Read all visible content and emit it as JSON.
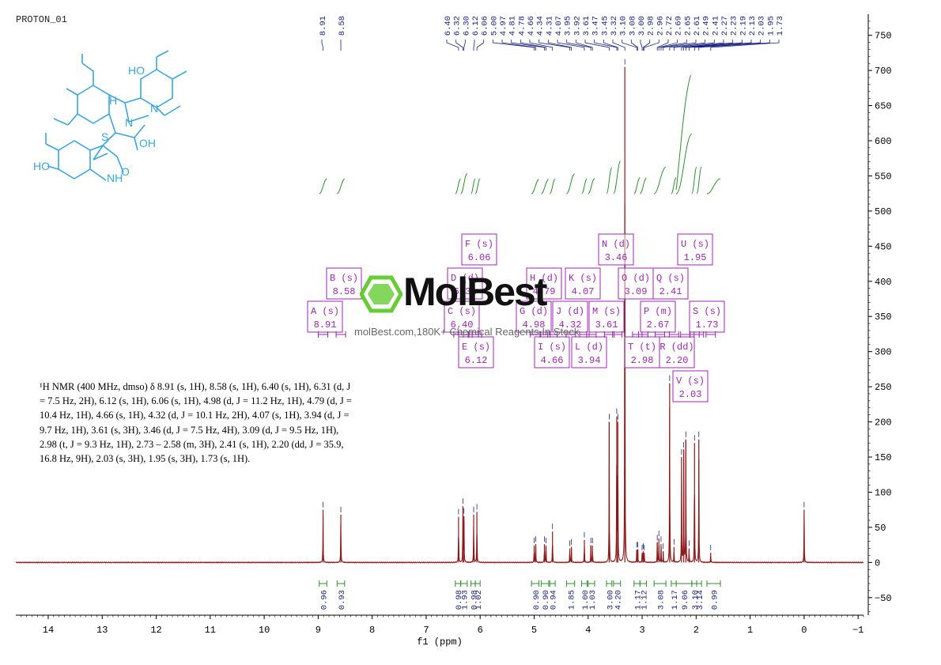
{
  "title": "PROTON_01",
  "nmr_text": "¹H NMR (400 MHz, dmso) δ 8.91 (s, 1H), 8.58 (s, 1H), 6.40 (s, 1H), 6.31 (d, J = 7.5 Hz, 2H), 6.12 (s, 1H), 6.06 (s, 1H), 4.98 (d, J = 11.2 Hz, 1H), 4.79 (d, J = 10.4 Hz, 1H), 4.66 (s, 1H), 4.32 (d, J = 10.1 Hz, 2H), 4.07 (s, 1H), 3.94 (d, J = 9.7 Hz, 1H), 3.61 (s, 3H), 3.46 (d, J = 7.5 Hz, 4H), 3.09 (d, J = 9.5 Hz, 1H), 2.98 (t, J = 9.3 Hz, 1H), 2.73 – 2.58 (m, 3H), 2.41 (s, 1H), 2.20 (dd, J = 35.9, 16.8 Hz, 9H), 2.03 (s, 3H), 1.95 (s, 3H), 1.73 (s, 1H).",
  "watermark": {
    "brand": "MolBest",
    "tagline": "molBest.com,180K+ Chemical Reagents In Stock"
  },
  "molecule": {
    "labels": [
      "HO",
      "N",
      "N",
      "S",
      "OH",
      "HO",
      "NH",
      "O",
      "H"
    ]
  },
  "colors": {
    "spectrum": "#8b1a1a",
    "integral": "#2f8f2f",
    "peak_label": "#1a237e",
    "multiplet_box": "#9c27b0",
    "molecule": "#3aa6dd"
  },
  "chart_data": {
    "type": "line",
    "xlabel": "f1 (ppm)",
    "xlim": [
      14.6,
      -1.1
    ],
    "ylim": [
      -75,
      780
    ],
    "x_ticks": [
      "14",
      "13",
      "12",
      "11",
      "10",
      "9",
      "8",
      "7",
      "6",
      "5",
      "4",
      "3",
      "2",
      "1",
      "0",
      "-1"
    ],
    "y_ticks": [
      "-50",
      "0",
      "50",
      "100",
      "150",
      "200",
      "250",
      "300",
      "350",
      "400",
      "450",
      "500",
      "550",
      "600",
      "650",
      "700",
      "750"
    ],
    "peaks": [
      {
        "ppm": 8.91,
        "height": 75
      },
      {
        "ppm": 8.58,
        "height": 68
      },
      {
        "ppm": 6.4,
        "height": 65
      },
      {
        "ppm": 6.32,
        "height": 80
      },
      {
        "ppm": 6.3,
        "height": 66
      },
      {
        "ppm": 6.12,
        "height": 68
      },
      {
        "ppm": 6.06,
        "height": 72
      },
      {
        "ppm": 5.0,
        "height": 24
      },
      {
        "ppm": 4.97,
        "height": 26
      },
      {
        "ppm": 4.81,
        "height": 26
      },
      {
        "ppm": 4.78,
        "height": 24
      },
      {
        "ppm": 4.66,
        "height": 44
      },
      {
        "ppm": 4.34,
        "height": 20
      },
      {
        "ppm": 4.31,
        "height": 22
      },
      {
        "ppm": 4.07,
        "height": 32
      },
      {
        "ppm": 3.95,
        "height": 24
      },
      {
        "ppm": 3.92,
        "height": 24
      },
      {
        "ppm": 3.61,
        "height": 200
      },
      {
        "ppm": 3.47,
        "height": 208
      },
      {
        "ppm": 3.45,
        "height": 200
      },
      {
        "ppm": 3.32,
        "height": 705
      },
      {
        "ppm": 3.1,
        "height": 18
      },
      {
        "ppm": 3.08,
        "height": 18
      },
      {
        "ppm": 3.0,
        "height": 14
      },
      {
        "ppm": 2.98,
        "height": 16
      },
      {
        "ppm": 2.96,
        "height": 14
      },
      {
        "ppm": 2.72,
        "height": 28
      },
      {
        "ppm": 2.69,
        "height": 34
      },
      {
        "ppm": 2.65,
        "height": 26
      },
      {
        "ppm": 2.61,
        "height": 16
      },
      {
        "ppm": 2.49,
        "height": 255
      },
      {
        "ppm": 2.41,
        "height": 22
      },
      {
        "ppm": 2.27,
        "height": 150
      },
      {
        "ppm": 2.23,
        "height": 160
      },
      {
        "ppm": 2.19,
        "height": 175
      },
      {
        "ppm": 2.13,
        "height": 20
      },
      {
        "ppm": 2.03,
        "height": 170
      },
      {
        "ppm": 1.95,
        "height": 175
      },
      {
        "ppm": 1.73,
        "height": 14
      },
      {
        "ppm": 0.0,
        "height": 75
      }
    ],
    "top_labels": [
      "8.91",
      "8.58",
      "6.40",
      "6.32",
      "6.30",
      "6.12",
      "6.06",
      "5.00",
      "4.97",
      "4.81",
      "4.78",
      "4.66",
      "4.34",
      "4.31",
      "4.07",
      "3.95",
      "3.92",
      "3.61",
      "3.47",
      "3.45",
      "3.32",
      "3.10",
      "3.08",
      "3.00",
      "2.98",
      "2.96",
      "2.72",
      "2.69",
      "2.65",
      "2.61",
      "2.49",
      "2.41",
      "2.27",
      "2.23",
      "2.19",
      "2.13",
      "2.03",
      "1.95",
      "1.73"
    ],
    "multiplets": [
      {
        "id": "A",
        "type": "s",
        "shift": "8.91"
      },
      {
        "id": "B",
        "type": "s",
        "shift": "8.58"
      },
      {
        "id": "C",
        "type": "s",
        "shift": "6.40"
      },
      {
        "id": "D",
        "type": "d",
        "shift": "6.31"
      },
      {
        "id": "E",
        "type": "s",
        "shift": "6.12"
      },
      {
        "id": "F",
        "type": "s",
        "shift": "6.06"
      },
      {
        "id": "G",
        "type": "d",
        "shift": "4.98"
      },
      {
        "id": "H",
        "type": "d",
        "shift": "4.79"
      },
      {
        "id": "I",
        "type": "s",
        "shift": "4.66"
      },
      {
        "id": "J",
        "type": "d",
        "shift": "4.32"
      },
      {
        "id": "K",
        "type": "s",
        "shift": "4.07"
      },
      {
        "id": "L",
        "type": "d",
        "shift": "3.94"
      },
      {
        "id": "M",
        "type": "s",
        "shift": "3.61"
      },
      {
        "id": "N",
        "type": "d",
        "shift": "3.46"
      },
      {
        "id": "O",
        "type": "d",
        "shift": "3.09"
      },
      {
        "id": "P",
        "type": "m",
        "shift": "2.67"
      },
      {
        "id": "Q",
        "type": "s",
        "shift": "2.41"
      },
      {
        "id": "R",
        "type": "dd",
        "shift": "2.20"
      },
      {
        "id": "S",
        "type": "s",
        "shift": "1.73"
      },
      {
        "id": "T",
        "type": "t",
        "shift": "2.98"
      },
      {
        "id": "U",
        "type": "s",
        "shift": "1.95"
      },
      {
        "id": "V",
        "type": "s",
        "shift": "2.03"
      }
    ],
    "integrals": [
      {
        "from": 8.98,
        "to": 8.84,
        "value": "0.96"
      },
      {
        "from": 8.65,
        "to": 8.51,
        "value": "0.93"
      },
      {
        "from": 6.46,
        "to": 6.36,
        "value": "0.98"
      },
      {
        "from": 6.36,
        "to": 6.24,
        "value": "1.93"
      },
      {
        "from": 6.17,
        "to": 6.09,
        "value": "0.98"
      },
      {
        "from": 6.09,
        "to": 6.0,
        "value": "1.02"
      },
      {
        "from": 5.05,
        "to": 4.91,
        "value": "0.90"
      },
      {
        "from": 4.87,
        "to": 4.73,
        "value": "0.90"
      },
      {
        "from": 4.71,
        "to": 4.61,
        "value": "0.94"
      },
      {
        "from": 4.4,
        "to": 4.25,
        "value": "1.85"
      },
      {
        "from": 4.12,
        "to": 4.02,
        "value": "1.00"
      },
      {
        "from": 4.0,
        "to": 3.88,
        "value": "1.03"
      },
      {
        "from": 3.66,
        "to": 3.56,
        "value": "3.00"
      },
      {
        "from": 3.53,
        "to": 3.4,
        "value": "4.20"
      },
      {
        "from": 3.15,
        "to": 3.04,
        "value": "1.17"
      },
      {
        "from": 3.04,
        "to": 2.92,
        "value": "1.12"
      },
      {
        "from": 2.78,
        "to": 2.56,
        "value": "3.08"
      },
      {
        "from": 2.46,
        "to": 2.37,
        "value": "1.17"
      },
      {
        "from": 2.37,
        "to": 2.08,
        "value": "9.06"
      },
      {
        "from": 2.08,
        "to": 1.99,
        "value": "3.10"
      },
      {
        "from": 1.99,
        "to": 1.9,
        "value": "3.14"
      },
      {
        "from": 1.8,
        "to": 1.55,
        "value": "0.99"
      }
    ]
  }
}
